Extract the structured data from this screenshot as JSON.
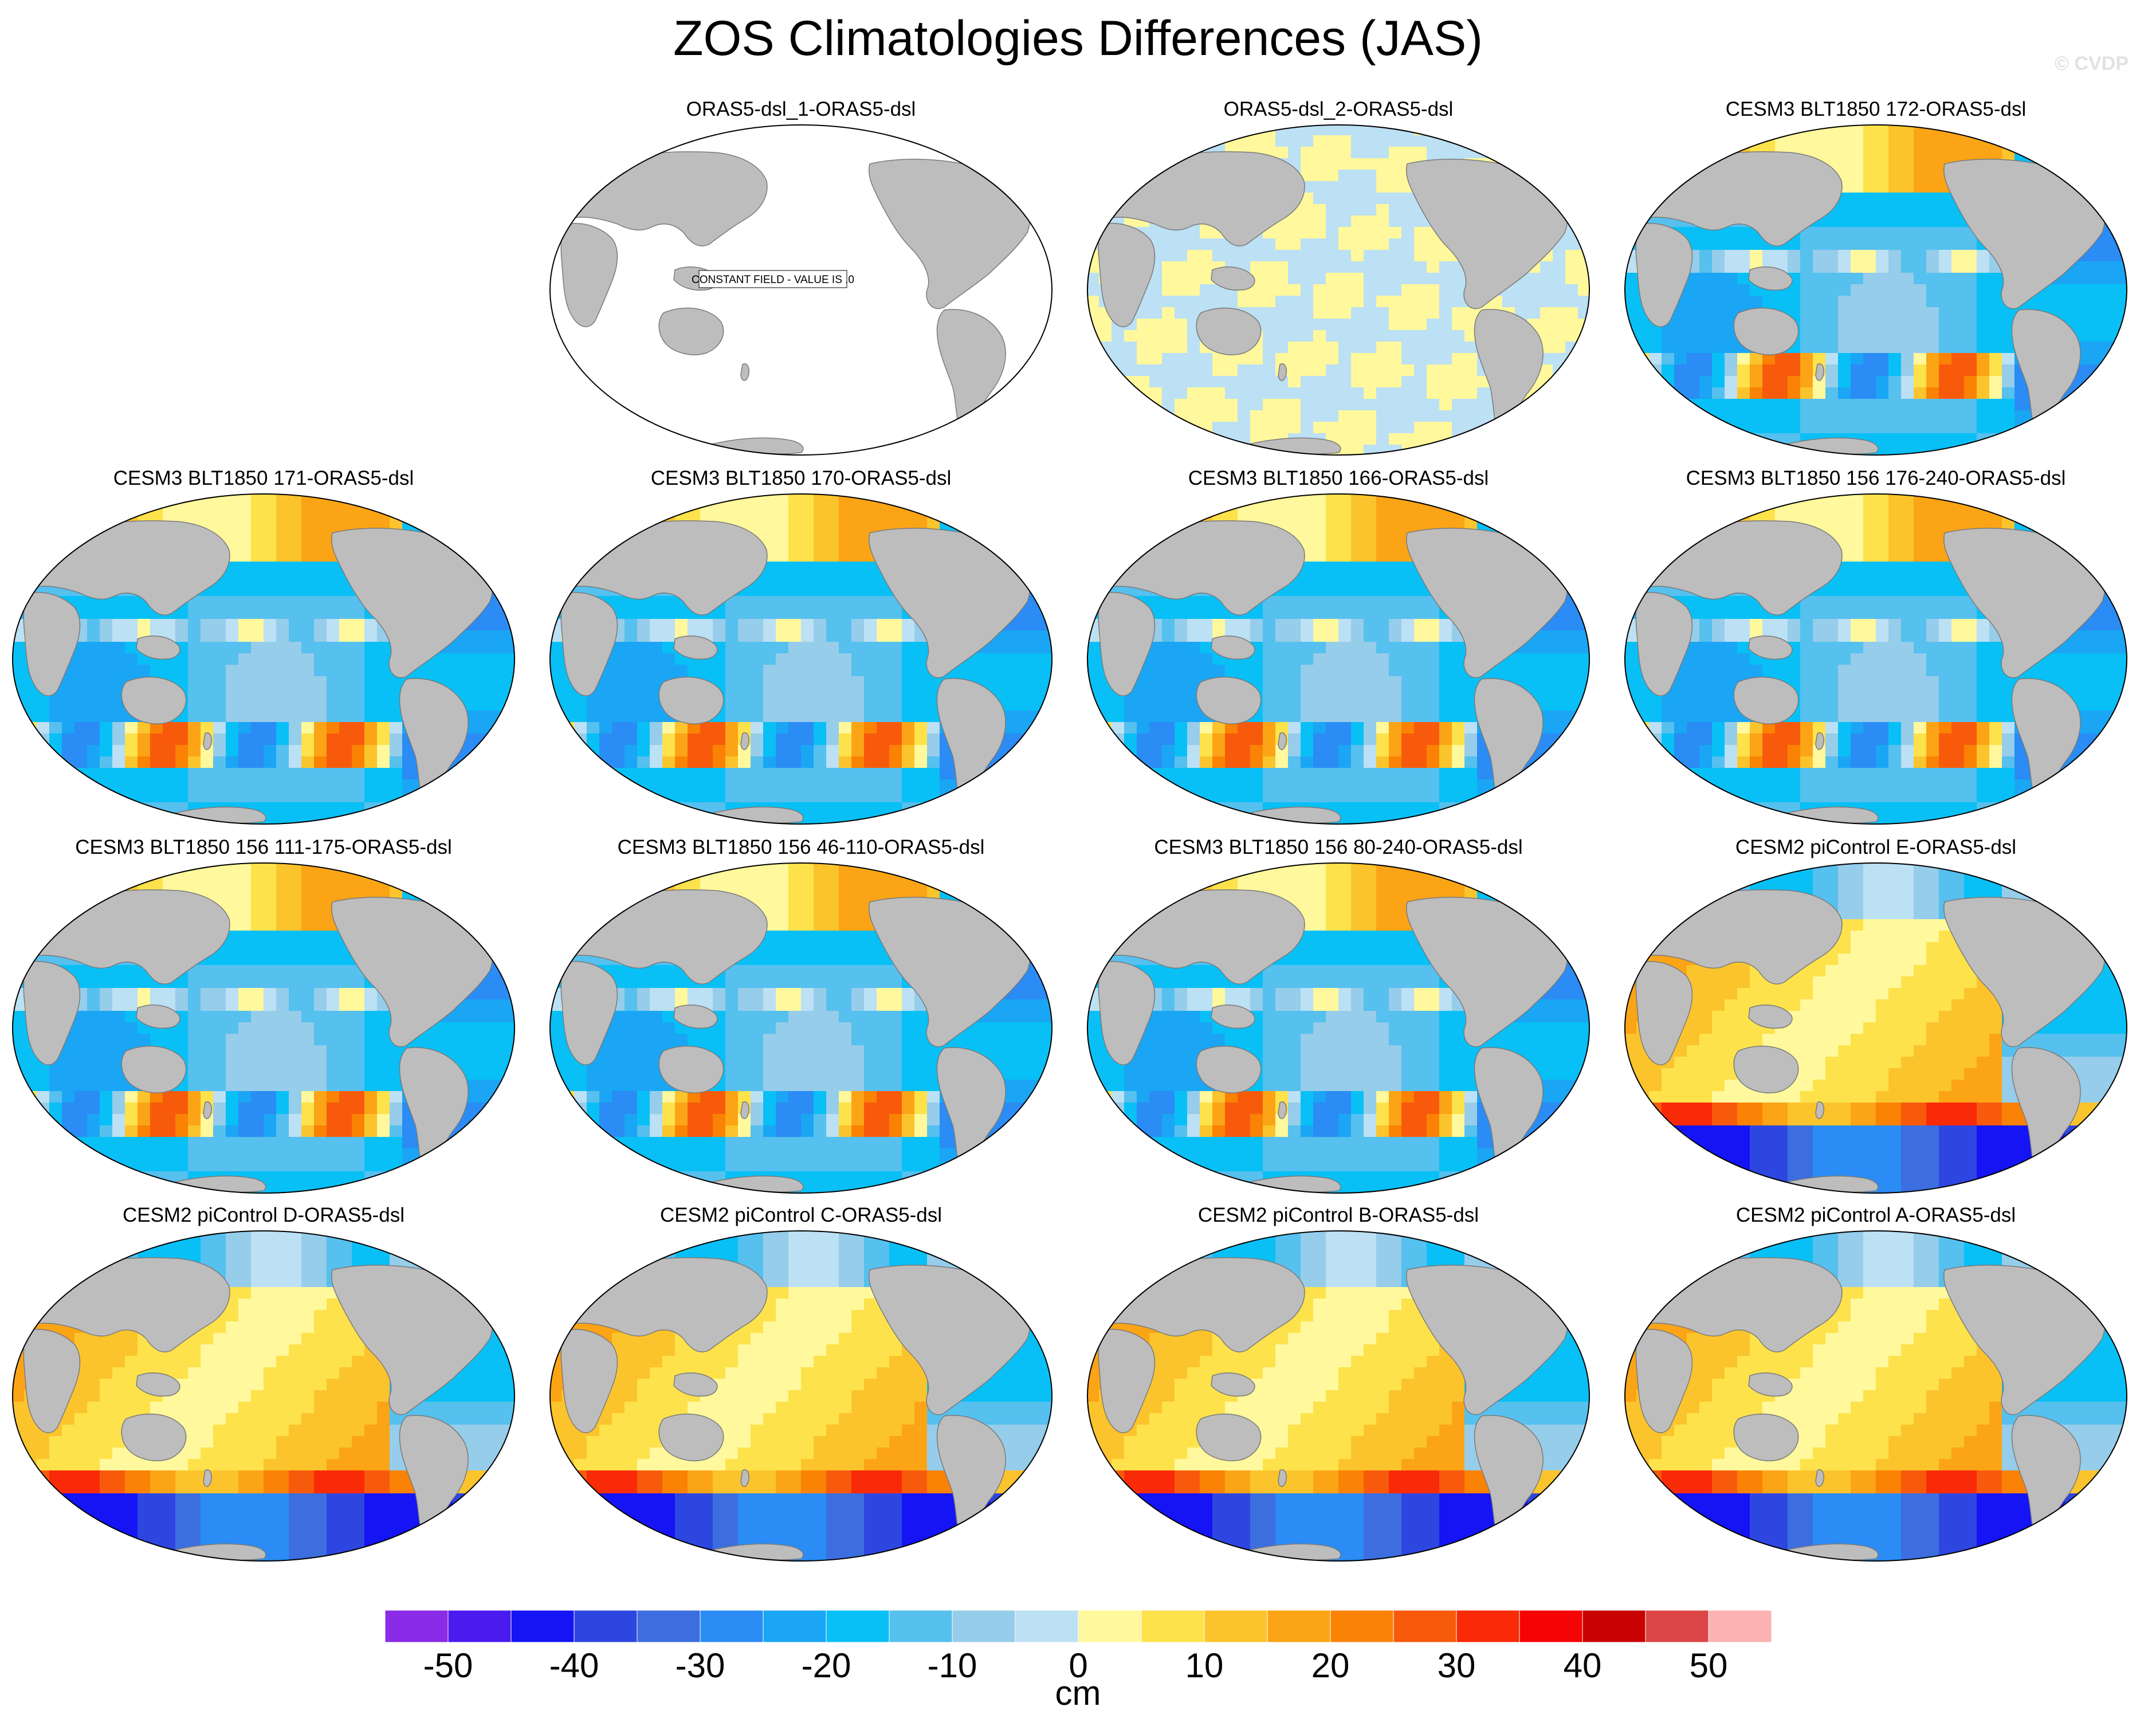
{
  "figure": {
    "title": "ZOS Climatologies Differences (JAS)",
    "copyright": "© CVDP"
  },
  "panels": [
    {
      "title": "ORAS5-dsl_1-ORAS5-dsl",
      "pattern": "constant",
      "note": "CONSTANT FIELD - VALUE IS .0"
    },
    {
      "title": "ORAS5-dsl_2-ORAS5-dsl",
      "pattern": "near_zero"
    },
    {
      "title": "CESM3 BLT1850 172-ORAS5-dsl",
      "pattern": "cesm3"
    },
    {
      "title": "CESM3 BLT1850 171-ORAS5-dsl",
      "pattern": "cesm3"
    },
    {
      "title": "CESM3 BLT1850 170-ORAS5-dsl",
      "pattern": "cesm3"
    },
    {
      "title": "CESM3 BLT1850 166-ORAS5-dsl",
      "pattern": "cesm3"
    },
    {
      "title": "CESM3 BLT1850 156 176-240-ORAS5-dsl",
      "pattern": "cesm3"
    },
    {
      "title": "CESM3 BLT1850 156 111-175-ORAS5-dsl",
      "pattern": "cesm3"
    },
    {
      "title": "CESM3 BLT1850 156 46-110-ORAS5-dsl",
      "pattern": "cesm3"
    },
    {
      "title": "CESM3 BLT1850 156 80-240-ORAS5-dsl",
      "pattern": "cesm3"
    },
    {
      "title": "CESM2 piControl E-ORAS5-dsl",
      "pattern": "cesm2"
    },
    {
      "title": "CESM2 piControl D-ORAS5-dsl",
      "pattern": "cesm2"
    },
    {
      "title": "CESM2 piControl C-ORAS5-dsl",
      "pattern": "cesm2"
    },
    {
      "title": "CESM2 piControl B-ORAS5-dsl",
      "pattern": "cesm2"
    },
    {
      "title": "CESM2 piControl A-ORAS5-dsl",
      "pattern": "cesm2"
    }
  ],
  "colorbar": {
    "units": "cm",
    "tick_labels": [
      "-50",
      "-40",
      "-30",
      "-20",
      "-10",
      "0",
      "10",
      "20",
      "30",
      "40",
      "50"
    ],
    "levels": [
      -55,
      -50,
      -45,
      -40,
      -35,
      -30,
      -25,
      -20,
      -15,
      -10,
      -5,
      0,
      5,
      10,
      15,
      20,
      25,
      30,
      35,
      40,
      45,
      50,
      55
    ],
    "colors": [
      "#8a2be8",
      "#4a1aee",
      "#1414f5",
      "#2e46e0",
      "#3c6ee0",
      "#2a8cf4",
      "#1aa6f4",
      "#08c0f6",
      "#56c0ee",
      "#96cdea",
      "#bce0f4",
      "#fff89c",
      "#fde24c",
      "#fbc42c",
      "#fba416",
      "#fa8204",
      "#f85a0c",
      "#f82a08",
      "#f40404",
      "#c80202",
      "#dc4646",
      "#fcb2b2"
    ]
  }
}
